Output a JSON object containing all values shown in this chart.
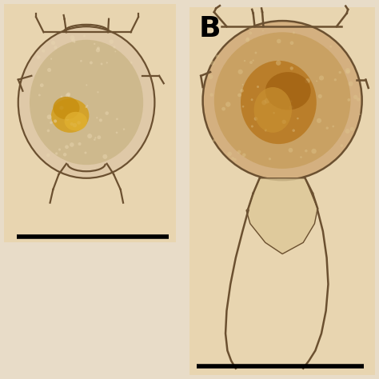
{
  "fig_bg": "#e8dcc8",
  "panel_bg": "#e8d5b0",
  "white_bg": "#ffffff",
  "body_fill": "#d4b896",
  "body_edge": "#6b5030",
  "organ_gold": "#c89020",
  "organ_brown": "#a06818",
  "spine_color": "#6b5030",
  "label_B_fontsize": 26,
  "label_B_fontweight": "bold",
  "scalebar_color": "#000000",
  "scalebar_lw": 4
}
